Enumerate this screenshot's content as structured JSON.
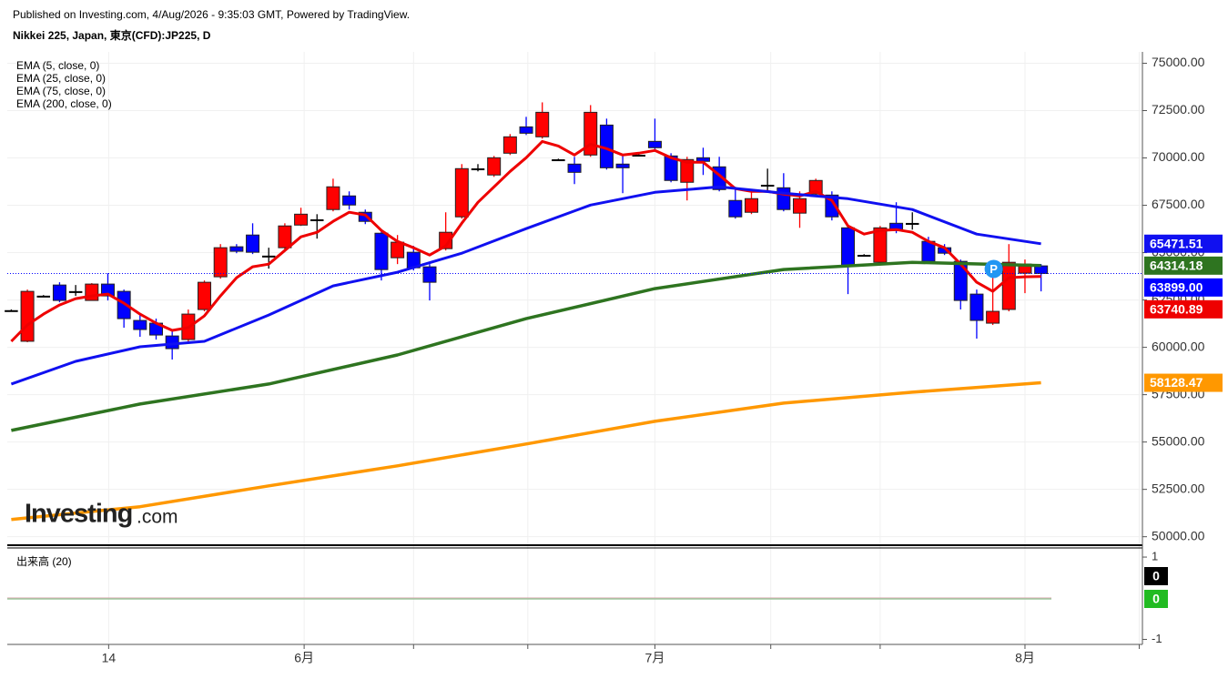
{
  "chart_data": {
    "type": "candlestick",
    "subtitle": "Published on Investing.com, 4/Aug/2026 - 9:35:03 GMT, Powered by TradingView.",
    "title": "Nikkei 225, Japan, 東京(CFD):JP225, D",
    "watermark": [
      "Investing",
      ".com"
    ],
    "badge": "P",
    "up_color": "#ff0000",
    "down_color": "#0000ff",
    "flat_color": "#000000",
    "x": [
      0,
      1,
      2,
      3,
      4,
      5,
      6,
      7,
      8,
      9,
      10,
      11,
      12,
      13,
      14,
      15,
      16,
      17,
      18,
      19,
      20,
      21,
      22,
      23,
      24,
      25,
      26,
      27,
      28,
      29,
      30,
      31,
      32,
      33,
      34,
      35,
      36,
      37,
      38,
      39,
      40,
      41,
      42,
      43,
      44,
      45,
      46,
      47,
      48,
      49,
      50,
      51,
      52,
      53,
      54,
      55,
      56,
      57,
      58,
      59,
      60,
      61,
      62,
      63,
      64
    ],
    "open": [
      61950,
      60320,
      62715,
      63290,
      62955,
      62475,
      63340,
      62955,
      61420,
      61275,
      60600,
      60410,
      61995,
      63725,
      65310,
      65930,
      64830,
      65260,
      66455,
      66745,
      67275,
      67995,
      67130,
      66025,
      64730,
      65020,
      64250,
      65210,
      66890,
      69435,
      69100,
      70250,
      71640,
      71115,
      69915,
      69675,
      70155,
      71735,
      69675,
      70155,
      70875,
      70105,
      68715,
      70010,
      69530,
      67755,
      67130,
      68570,
      68425,
      67085,
      68090,
      68040,
      66310,
      64870,
      64490,
      66550,
      66555,
      65595,
      65260,
      64540,
      62810,
      61275,
      62000,
      63915,
      64300
    ],
    "high": [
      62000,
      63050,
      62760,
      63435,
      63290,
      63390,
      63915,
      63050,
      61755,
      61515,
      60940,
      61995,
      63530,
      65450,
      65450,
      66550,
      65260,
      66550,
      67370,
      67030,
      68905,
      68235,
      67275,
      66120,
      65930,
      65355,
      64395,
      67130,
      69675,
      69675,
      70105,
      71260,
      72170,
      72935,
      69960,
      70060,
      72790,
      72075,
      70155,
      70200,
      72075,
      70250,
      70060,
      70540,
      70060,
      68475,
      68235,
      69435,
      69195,
      68235,
      68905,
      68235,
      66410,
      64920,
      66410,
      67660,
      67130,
      65835,
      65450,
      64635,
      63050,
      63675,
      65450,
      64635,
      64395
    ],
    "low": [
      61900,
      60270,
      62670,
      62380,
      62715,
      62475,
      62475,
      61035,
      60555,
      60410,
      59355,
      60315,
      61900,
      63625,
      64970,
      64925,
      64155,
      65160,
      66410,
      65740,
      67180,
      67275,
      66505,
      63530,
      64395,
      64060,
      62475,
      65115,
      66795,
      69290,
      69000,
      70155,
      71210,
      71020,
      69870,
      68620,
      70060,
      69385,
      68140,
      70110,
      70395,
      68715,
      67755,
      69100,
      68235,
      66795,
      67035,
      68235,
      67180,
      66310,
      67995,
      66700,
      62810,
      64820,
      64345,
      66025,
      66215,
      64440,
      64875,
      62000,
      60460,
      61180,
      61900,
      62860,
      62955
    ],
    "close": [
      61950,
      62955,
      62715,
      62475,
      62955,
      63340,
      62715,
      61515,
      60940,
      60650,
      59930,
      61755,
      63435,
      65260,
      65070,
      65020,
      64830,
      66410,
      67030,
      66745,
      68475,
      67515,
      66650,
      64105,
      65550,
      64200,
      63435,
      66075,
      69435,
      69435,
      70010,
      71115,
      71305,
      72410,
      69915,
      69240,
      72410,
      69480,
      69480,
      70155,
      70540,
      68810,
      69915,
      69820,
      68330,
      66890,
      67850,
      68570,
      67275,
      67850,
      68810,
      66890,
      64300,
      64870,
      66310,
      66170,
      66555,
      64540,
      64970,
      62475,
      61420,
      61900,
      64490,
      64395,
      63899
    ],
    "series": [
      {
        "name": "EMA (5, close, 0)",
        "color": "#ee0000",
        "width": 3,
        "x": [
          0,
          1,
          2,
          3,
          4,
          5,
          6,
          7,
          8,
          9,
          10,
          11,
          12,
          13,
          14,
          15,
          16,
          17,
          18,
          19,
          20,
          21,
          22,
          23,
          24,
          25,
          26,
          27,
          28,
          29,
          30,
          31,
          32,
          33,
          34,
          35,
          36,
          37,
          38,
          39,
          40,
          41,
          42,
          43,
          44,
          45,
          46,
          47,
          48,
          49,
          50,
          51,
          52,
          53,
          54,
          55,
          56,
          57,
          58,
          59,
          60,
          61,
          62,
          63,
          64
        ],
        "values": [
          60317,
          61180,
          61756,
          62236,
          62572,
          62716,
          62812,
          62332,
          61756,
          61276,
          60892,
          61036,
          61660,
          62716,
          63676,
          64251,
          64395,
          65115,
          65835,
          66075,
          66651,
          67130,
          66987,
          66171,
          65595,
          65259,
          64875,
          65355,
          66555,
          67658,
          68474,
          69290,
          70010,
          70873,
          70633,
          70154,
          70729,
          70489,
          70154,
          70249,
          70393,
          70010,
          69770,
          69770,
          69098,
          68378,
          68234,
          68234,
          68090,
          67994,
          68234,
          67754,
          66411,
          65979,
          66171,
          66219,
          66075,
          65595,
          65259,
          64395,
          63436,
          62956,
          63676,
          63724,
          63740.89
        ]
      },
      {
        "name": "EMA (25, close, 0)",
        "color": "#1010f0",
        "width": 3,
        "x": [
          0,
          4,
          8,
          12,
          16,
          20,
          24,
          28,
          32,
          36,
          40,
          44,
          48,
          52,
          56,
          60,
          64
        ],
        "values": [
          58061,
          59261,
          60029,
          60317,
          61708,
          63244,
          63963,
          64971,
          66267,
          67514,
          68186,
          68474,
          68138,
          67850,
          67274,
          65979,
          65471.51
        ]
      },
      {
        "name": "EMA (75, close, 0)",
        "color": "#2e7420",
        "width": 3.5,
        "x": [
          0,
          8,
          16,
          24,
          32,
          40,
          48,
          56,
          64
        ],
        "values": [
          55614,
          57006,
          58061,
          59597,
          61516,
          63100,
          64107,
          64491,
          64314.18
        ]
      },
      {
        "name": "EMA (200, close, 0)",
        "color": "#ff9800",
        "width": 3.5,
        "x": [
          0,
          8,
          16,
          24,
          32,
          40,
          48,
          56,
          64
        ],
        "values": [
          50912,
          51583,
          52687,
          53743,
          54894,
          56094,
          57054,
          57629,
          58128.47
        ]
      }
    ],
    "last_price": {
      "value": 63899,
      "label": "63899.00"
    },
    "xlim": [
      -0.25,
      70.3
    ],
    "ylim": [
      49600,
      75600
    ],
    "yticks": [
      {
        "value": 50000,
        "label": "50000.00"
      },
      {
        "value": 52500,
        "label": "52500.00"
      },
      {
        "value": 55000,
        "label": "55000.00"
      },
      {
        "value": 57500,
        "label": "57500.00"
      },
      {
        "value": 60000,
        "label": "60000.00"
      },
      {
        "value": 62500,
        "label": "62500.00"
      },
      {
        "value": 65000,
        "label": "65000.00"
      },
      {
        "value": 67500,
        "label": "67500.00"
      },
      {
        "value": 70000,
        "label": "70000.00"
      },
      {
        "value": 72500,
        "label": "72500.00"
      },
      {
        "value": 75000,
        "label": "75000.00"
      }
    ],
    "xticks": [
      {
        "value": 6.05,
        "label": "14"
      },
      {
        "value": 18.2,
        "label": "6月"
      },
      {
        "value": 40,
        "label": "7月"
      },
      {
        "value": 63,
        "label": "8月"
      }
    ],
    "xminorticks": [
      25,
      32.1,
      47.2,
      54,
      70.1
    ],
    "grid": true,
    "volume": {
      "title": "出来高 (20)",
      "ylim": [
        -1.1,
        1.2
      ],
      "yticks": [
        1,
        -1
      ],
      "last_values": [
        0,
        0
      ],
      "colors": [
        "#000000",
        "#22bb22"
      ],
      "line_colors": [
        "#d9a0a8",
        "#a0c8a0"
      ]
    }
  }
}
